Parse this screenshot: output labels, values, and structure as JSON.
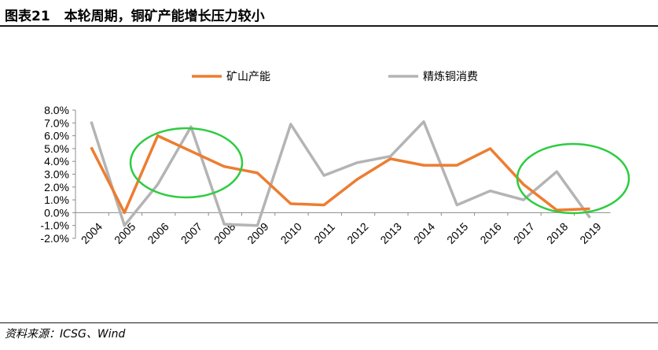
{
  "figure": {
    "number": "图表21",
    "title": "本轮周期，铜矿产能增长压力较小",
    "source": "资料来源：ICSG、Wind"
  },
  "chart_data": {
    "type": "line",
    "x": [
      "2004",
      "2005",
      "2006",
      "2007",
      "2008",
      "2009",
      "2010",
      "2011",
      "2012",
      "2013",
      "2014",
      "2015",
      "2016",
      "2017",
      "2018",
      "2019"
    ],
    "series": [
      {
        "name": "矿山产能",
        "color": "#ED7D31",
        "values": [
          5.1,
          0.0,
          6.0,
          4.8,
          3.6,
          3.1,
          0.7,
          0.6,
          2.6,
          4.2,
          3.7,
          3.7,
          5.0,
          2.2,
          0.2,
          0.3
        ]
      },
      {
        "name": "精炼铜消费",
        "color": "#B4B4B4",
        "values": [
          7.1,
          -1.0,
          2.2,
          6.7,
          -0.9,
          -1.0,
          6.9,
          2.9,
          3.9,
          4.4,
          7.1,
          0.6,
          1.7,
          1.0,
          3.2,
          -0.4
        ]
      }
    ],
    "yticks": [
      "8.0%",
      "7.0%",
      "6.0%",
      "5.0%",
      "4.0%",
      "3.0%",
      "2.0%",
      "1.0%",
      "0.0%",
      "-1.0%",
      "-2.0%"
    ],
    "ylim": [
      -2,
      8
    ],
    "grid": false,
    "legend_position": "top",
    "annotations": [
      {
        "type": "ellipse",
        "color": "#2ECC40",
        "around": [
          "2006",
          "2007",
          "2008"
        ]
      },
      {
        "type": "ellipse",
        "color": "#2ECC40",
        "around": [
          "2017",
          "2018",
          "2019"
        ]
      }
    ]
  }
}
